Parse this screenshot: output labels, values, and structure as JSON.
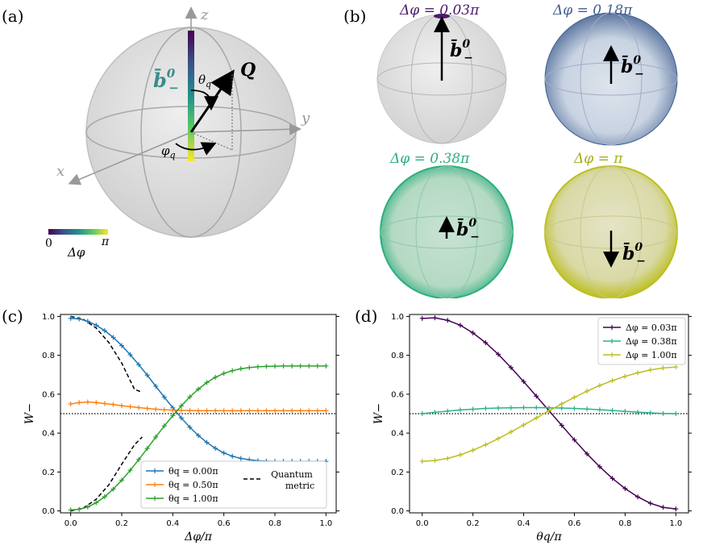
{
  "panels": {
    "a": {
      "label": "(a)",
      "axis_z": "z",
      "axis_y": "y",
      "axis_x": "x",
      "vector_label": "Q",
      "theta_label": "θ",
      "theta_sub": "q",
      "phi_label": "φ",
      "phi_sub": "q",
      "b_label": "b̄",
      "b_sup": "0",
      "b_sub": "−",
      "colorbar_min": "0",
      "colorbar_max": "π",
      "colorbar_label": "Δφ"
    },
    "b": {
      "label": "(b)",
      "spheres": [
        {
          "title": "Δφ = 0.03π",
          "color": "#4b1a6a",
          "arrow": "up"
        },
        {
          "title": "Δφ = 0.18π",
          "color": "#3f5e8f",
          "arrow": "up"
        },
        {
          "title": "Δφ = 0.38π",
          "color": "#2eae7d",
          "arrow": "up"
        },
        {
          "title": "Δφ = π",
          "color": "#bcbf21",
          "arrow": "down"
        }
      ],
      "b_label": "b̄",
      "b_sup": "0",
      "b_sub": "−"
    },
    "c": {
      "label": "(c)"
    },
    "d": {
      "label": "(d)"
    }
  },
  "chart_data": [
    {
      "type": "line",
      "panel": "c",
      "xlabel": "Δφ/π",
      "ylabel": "W−",
      "xlim": [
        -0.04,
        1.04
      ],
      "ylim": [
        0.0,
        1.0
      ],
      "xticks": [
        "0.0",
        "0.2",
        "0.4",
        "0.6",
        "0.8",
        "1.0"
      ],
      "yticks": [
        "0.0",
        "0.2",
        "0.4",
        "0.6",
        "0.8",
        "1.0"
      ],
      "x": [
        0.0,
        0.0333,
        0.0667,
        0.1,
        0.1333,
        0.1667,
        0.2,
        0.2333,
        0.2667,
        0.3,
        0.3333,
        0.3667,
        0.4,
        0.4333,
        0.4667,
        0.5,
        0.5333,
        0.5667,
        0.6,
        0.6333,
        0.6667,
        0.7,
        0.7333,
        0.7667,
        0.8,
        0.8333,
        0.8667,
        0.9,
        0.9333,
        0.9667,
        1.0
      ],
      "series": [
        {
          "name": "θq = 0.00π",
          "color": "#1f77b4",
          "values": [
            0.99,
            0.987,
            0.975,
            0.955,
            0.927,
            0.892,
            0.85,
            0.803,
            0.752,
            0.698,
            0.641,
            0.585,
            0.53,
            0.478,
            0.43,
            0.388,
            0.352,
            0.322,
            0.298,
            0.281,
            0.27,
            0.263,
            0.258,
            0.256,
            0.255,
            0.255,
            0.255,
            0.255,
            0.255,
            0.255,
            0.255
          ]
        },
        {
          "name": "θq = 0.50π",
          "color": "#ff7f0e",
          "values": [
            0.55,
            0.557,
            0.56,
            0.557,
            0.552,
            0.547,
            0.541,
            0.536,
            0.531,
            0.527,
            0.523,
            0.52,
            0.518,
            0.517,
            0.516,
            0.515,
            0.515,
            0.515,
            0.515,
            0.515,
            0.515,
            0.515,
            0.515,
            0.515,
            0.515,
            0.515,
            0.515,
            0.515,
            0.515,
            0.515,
            0.515
          ]
        },
        {
          "name": "θq = 1.00π",
          "color": "#2ca02c",
          "values": [
            0.005,
            0.008,
            0.02,
            0.042,
            0.073,
            0.112,
            0.158,
            0.209,
            0.264,
            0.321,
            0.38,
            0.437,
            0.49,
            0.54,
            0.586,
            0.626,
            0.66,
            0.687,
            0.707,
            0.721,
            0.731,
            0.737,
            0.741,
            0.743,
            0.744,
            0.745,
            0.745,
            0.745,
            0.745,
            0.745,
            0.745
          ]
        }
      ],
      "quantum_metric": {
        "name_line1": "Quantum",
        "name_line2": "metric",
        "upper_x": [
          0.0,
          0.05,
          0.1,
          0.15,
          0.2,
          0.25,
          0.28
        ],
        "upper_y": [
          1.0,
          0.985,
          0.94,
          0.865,
          0.76,
          0.625,
          0.61
        ],
        "lower_x": [
          0.0,
          0.05,
          0.1,
          0.15,
          0.2,
          0.25,
          0.28
        ],
        "lower_y": [
          0.0,
          0.015,
          0.06,
          0.135,
          0.24,
          0.34,
          0.38
        ]
      },
      "hline": 0.5,
      "legend": "bottom-center"
    },
    {
      "type": "line",
      "panel": "d",
      "xlabel": "θq/π",
      "ylabel": "W−",
      "xlim": [
        -0.05,
        1.05
      ],
      "ylim": [
        0.0,
        1.0
      ],
      "xticks": [
        "0.0",
        "0.2",
        "0.4",
        "0.6",
        "0.8",
        "1.0"
      ],
      "yticks": [
        "0.0",
        "0.2",
        "0.4",
        "0.6",
        "0.8",
        "1.0"
      ],
      "x": [
        0.0,
        0.05,
        0.1,
        0.15,
        0.2,
        0.25,
        0.3,
        0.35,
        0.4,
        0.45,
        0.5,
        0.55,
        0.6,
        0.65,
        0.7,
        0.75,
        0.8,
        0.85,
        0.9,
        0.95,
        1.0
      ],
      "series": [
        {
          "name": "Δφ = 0.03π",
          "color": "#440154",
          "values": [
            0.99,
            0.993,
            0.98,
            0.955,
            0.915,
            0.865,
            0.805,
            0.737,
            0.665,
            0.59,
            0.515,
            0.44,
            0.365,
            0.293,
            0.227,
            0.167,
            0.115,
            0.072,
            0.039,
            0.018,
            0.01
          ]
        },
        {
          "name": "Δφ = 0.38π",
          "color": "#2ab08e",
          "values": [
            0.5,
            0.507,
            0.513,
            0.519,
            0.523,
            0.527,
            0.529,
            0.53,
            0.531,
            0.531,
            0.53,
            0.529,
            0.527,
            0.524,
            0.52,
            0.516,
            0.512,
            0.508,
            0.504,
            0.501,
            0.5
          ]
        },
        {
          "name": "Δφ = 1.00π",
          "color": "#bcbd22",
          "values": [
            0.255,
            0.259,
            0.27,
            0.288,
            0.312,
            0.34,
            0.372,
            0.406,
            0.442,
            0.478,
            0.515,
            0.55,
            0.584,
            0.616,
            0.645,
            0.67,
            0.692,
            0.71,
            0.725,
            0.735,
            0.74
          ]
        }
      ],
      "hline": 0.5,
      "legend": "top-right"
    }
  ]
}
